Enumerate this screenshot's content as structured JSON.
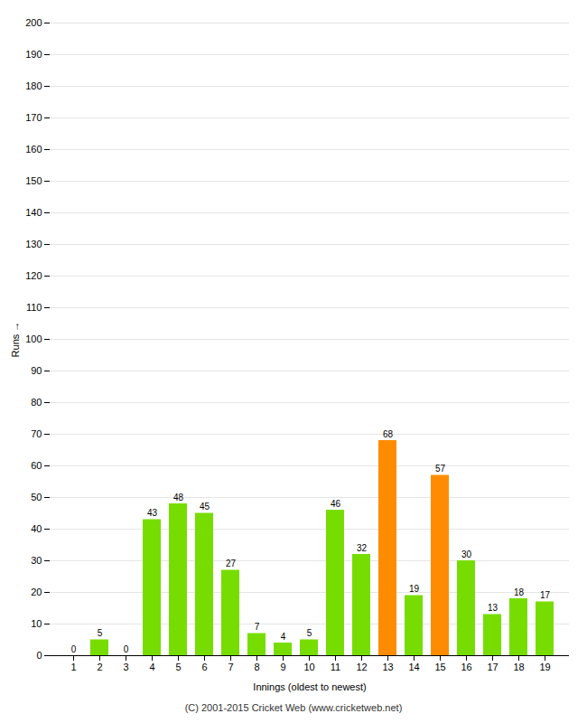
{
  "chart_data": {
    "type": "bar",
    "categories": [
      "1",
      "2",
      "3",
      "4",
      "5",
      "6",
      "7",
      "8",
      "9",
      "10",
      "11",
      "12",
      "13",
      "14",
      "15",
      "16",
      "17",
      "18",
      "19"
    ],
    "values": [
      0,
      5,
      0,
      43,
      48,
      45,
      27,
      7,
      4,
      5,
      46,
      32,
      68,
      19,
      57,
      30,
      13,
      18,
      17
    ],
    "colors": [
      "#77dd00",
      "#77dd00",
      "#77dd00",
      "#77dd00",
      "#77dd00",
      "#77dd00",
      "#77dd00",
      "#77dd00",
      "#77dd00",
      "#77dd00",
      "#77dd00",
      "#77dd00",
      "#ff8c00",
      "#77dd00",
      "#ff8c00",
      "#77dd00",
      "#77dd00",
      "#77dd00",
      "#77dd00"
    ],
    "xlabel": "Innings (oldest to newest)",
    "ylabel": "Runs",
    "ylim": [
      0,
      200
    ],
    "yticks": [
      0,
      10,
      20,
      30,
      40,
      50,
      60,
      70,
      80,
      90,
      100,
      110,
      120,
      130,
      140,
      150,
      160,
      170,
      180,
      190,
      200
    ],
    "grid": true,
    "data_labels": true,
    "footer": "(C) 2001-2015 Cricket Web (www.cricketweb.net)"
  }
}
